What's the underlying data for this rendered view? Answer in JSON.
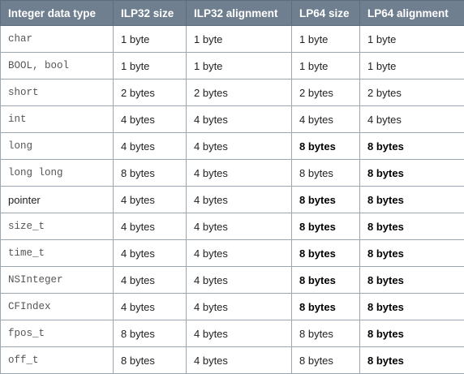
{
  "table": {
    "headers": [
      "Integer data type",
      "ILP32 size",
      "ILP32 alignment",
      "LP64 size",
      "LP64 alignment"
    ],
    "rows": [
      {
        "type": "char",
        "type_mono": true,
        "ilp32_size": "1 byte",
        "ilp32_align": "1 byte",
        "lp64_size": "1 byte",
        "lp64_align": "1 byte",
        "lp64_size_bold": false,
        "lp64_align_bold": false
      },
      {
        "type": "BOOL, bool",
        "type_mono": true,
        "ilp32_size": "1 byte",
        "ilp32_align": "1 byte",
        "lp64_size": "1 byte",
        "lp64_align": "1 byte",
        "lp64_size_bold": false,
        "lp64_align_bold": false
      },
      {
        "type": "short",
        "type_mono": true,
        "ilp32_size": "2 bytes",
        "ilp32_align": "2 bytes",
        "lp64_size": "2 bytes",
        "lp64_align": "2 bytes",
        "lp64_size_bold": false,
        "lp64_align_bold": false
      },
      {
        "type": "int",
        "type_mono": true,
        "ilp32_size": "4 bytes",
        "ilp32_align": "4 bytes",
        "lp64_size": "4 bytes",
        "lp64_align": "4 bytes",
        "lp64_size_bold": false,
        "lp64_align_bold": false
      },
      {
        "type": "long",
        "type_mono": true,
        "ilp32_size": "4 bytes",
        "ilp32_align": "4 bytes",
        "lp64_size": "8 bytes",
        "lp64_align": "8 bytes",
        "lp64_size_bold": true,
        "lp64_align_bold": true
      },
      {
        "type": "long long",
        "type_mono": true,
        "ilp32_size": "8 bytes",
        "ilp32_align": "4 bytes",
        "lp64_size": "8 bytes",
        "lp64_align": "8 bytes",
        "lp64_size_bold": false,
        "lp64_align_bold": true
      },
      {
        "type": "pointer",
        "type_mono": false,
        "ilp32_size": "4 bytes",
        "ilp32_align": "4 bytes",
        "lp64_size": "8 bytes",
        "lp64_align": "8 bytes",
        "lp64_size_bold": true,
        "lp64_align_bold": true
      },
      {
        "type": "size_t",
        "type_mono": true,
        "ilp32_size": "4 bytes",
        "ilp32_align": "4 bytes",
        "lp64_size": "8 bytes",
        "lp64_align": "8 bytes",
        "lp64_size_bold": true,
        "lp64_align_bold": true
      },
      {
        "type": "time_t",
        "type_mono": true,
        "ilp32_size": "4 bytes",
        "ilp32_align": "4 bytes",
        "lp64_size": "8 bytes",
        "lp64_align": "8 bytes",
        "lp64_size_bold": true,
        "lp64_align_bold": true
      },
      {
        "type": "NSInteger",
        "type_mono": true,
        "ilp32_size": "4 bytes",
        "ilp32_align": "4 bytes",
        "lp64_size": "8 bytes",
        "lp64_align": "8 bytes",
        "lp64_size_bold": true,
        "lp64_align_bold": true
      },
      {
        "type": "CFIndex",
        "type_mono": true,
        "ilp32_size": "4 bytes",
        "ilp32_align": "4 bytes",
        "lp64_size": "8 bytes",
        "lp64_align": "8 bytes",
        "lp64_size_bold": true,
        "lp64_align_bold": true
      },
      {
        "type": "fpos_t",
        "type_mono": true,
        "ilp32_size": "8 bytes",
        "ilp32_align": "4 bytes",
        "lp64_size": "8 bytes",
        "lp64_align": "8 bytes",
        "lp64_size_bold": false,
        "lp64_align_bold": true
      },
      {
        "type": "off_t",
        "type_mono": true,
        "ilp32_size": "8 bytes",
        "ilp32_align": "4 bytes",
        "lp64_size": "8 bytes",
        "lp64_align": "8 bytes",
        "lp64_size_bold": false,
        "lp64_align_bold": true
      }
    ]
  }
}
